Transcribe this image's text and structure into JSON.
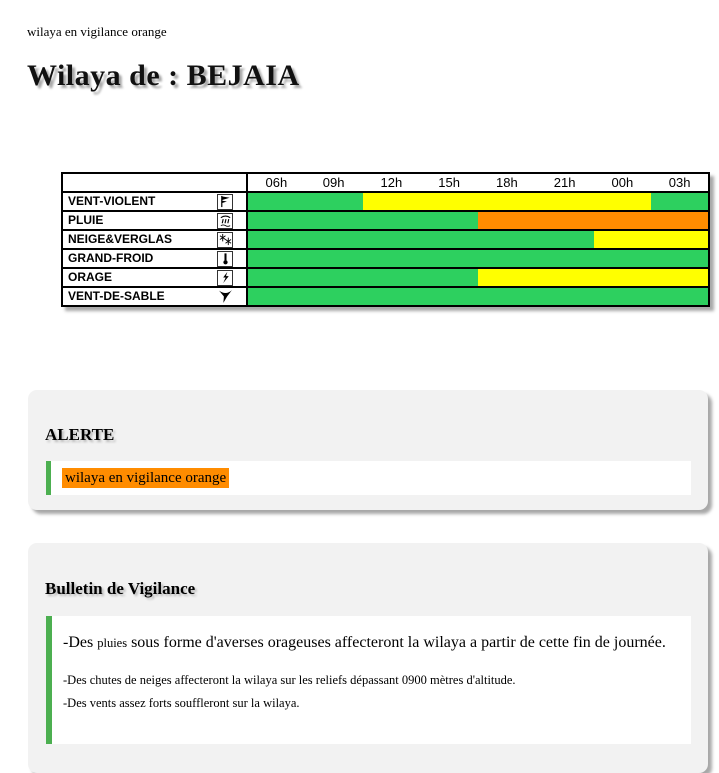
{
  "page": {
    "top_note": "wilaya en vigilance orange",
    "title": "Wilaya de : BEJAIA"
  },
  "vigilance_table": {
    "time_headers": [
      "06h",
      "09h",
      "12h",
      "15h",
      "18h",
      "21h",
      "00h",
      "03h"
    ],
    "rows": [
      {
        "label": "VENT-VIOLENT",
        "icon": "wind-flag-icon",
        "boxed_icon": true,
        "segments": [
          {
            "level": "green",
            "span": 2
          },
          {
            "level": "yellow",
            "span": 5
          },
          {
            "level": "green",
            "span": 1
          }
        ]
      },
      {
        "label": "PLUIE",
        "icon": "rain-icon",
        "boxed_icon": true,
        "segments": [
          {
            "level": "green",
            "span": 4
          },
          {
            "level": "orange",
            "span": 4
          }
        ]
      },
      {
        "label": "NEIGE&VERGLAS",
        "icon": "snowflake-icon",
        "boxed_icon": true,
        "segments": [
          {
            "level": "green",
            "span": 6
          },
          {
            "level": "yellow",
            "span": 2
          }
        ]
      },
      {
        "label": "GRAND-FROID",
        "icon": "thermometer-icon",
        "boxed_icon": true,
        "segments": [
          {
            "level": "green",
            "span": 8
          }
        ]
      },
      {
        "label": "ORAGE",
        "icon": "lightning-icon",
        "boxed_icon": true,
        "segments": [
          {
            "level": "green",
            "span": 4
          },
          {
            "level": "yellow",
            "span": 4
          }
        ]
      },
      {
        "label": "VENT-DE-SABLE",
        "icon": "tornado-icon",
        "boxed_icon": false,
        "segments": [
          {
            "level": "green",
            "span": 8
          }
        ]
      }
    ],
    "level_colors": {
      "green": "#2dd05f",
      "yellow": "#ffff00",
      "orange": "#ff8c00"
    }
  },
  "alert_section": {
    "heading": "ALERTE",
    "message": "wilaya en vigilance orange",
    "highlight_color": "#ff8c00",
    "accent_color": "#4caf50"
  },
  "bulletin_section": {
    "heading": "Bulletin de Vigilance",
    "accent_color": "#4caf50",
    "lines": [
      {
        "parts": [
          {
            "text": "-Des ",
            "size": "large"
          },
          {
            "text": "pluies",
            "size": "small"
          },
          {
            "text": " sous forme d'averses orageuses affecteront la wilaya a partir de cette fin de journée.",
            "size": "large"
          }
        ]
      },
      {
        "parts": [
          {
            "text": "-Des chutes de neiges affecteront la wilaya sur les reliefs dépassant 0900 mètres d'altitude.",
            "size": "small"
          }
        ]
      },
      {
        "parts": [
          {
            "text": "-Des vents assez forts souffleront sur la wilaya.",
            "size": "small"
          }
        ]
      }
    ]
  }
}
